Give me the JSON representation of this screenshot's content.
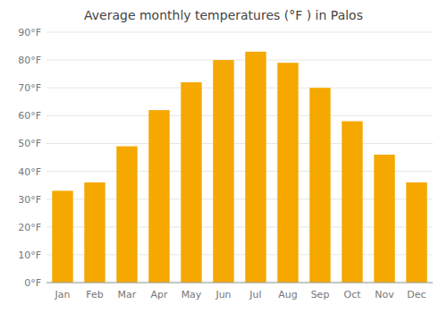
{
  "chart_data": {
    "type": "bar",
    "title": "Average monthly temperatures (°F ) in Palos",
    "categories": [
      "Jan",
      "Feb",
      "Mar",
      "Apr",
      "May",
      "Jun",
      "Jul",
      "Aug",
      "Sep",
      "Oct",
      "Nov",
      "Dec"
    ],
    "values": [
      33,
      36,
      49,
      62,
      72,
      80,
      83,
      79,
      70,
      58,
      46,
      36
    ],
    "color": "#F5A800",
    "ylim": [
      0,
      90
    ],
    "yticks": [
      {
        "value": 0,
        "label": "0°F"
      },
      {
        "value": 10,
        "label": "10°F"
      },
      {
        "value": 20,
        "label": "20°F"
      },
      {
        "value": 30,
        "label": "30°F"
      },
      {
        "value": 40,
        "label": "40°F"
      },
      {
        "value": 50,
        "label": "50°F"
      },
      {
        "value": 60,
        "label": "60°F"
      },
      {
        "value": 70,
        "label": "70°F"
      },
      {
        "value": 80,
        "label": "80°F"
      },
      {
        "value": 90,
        "label": "90°F"
      }
    ],
    "grid": true
  }
}
